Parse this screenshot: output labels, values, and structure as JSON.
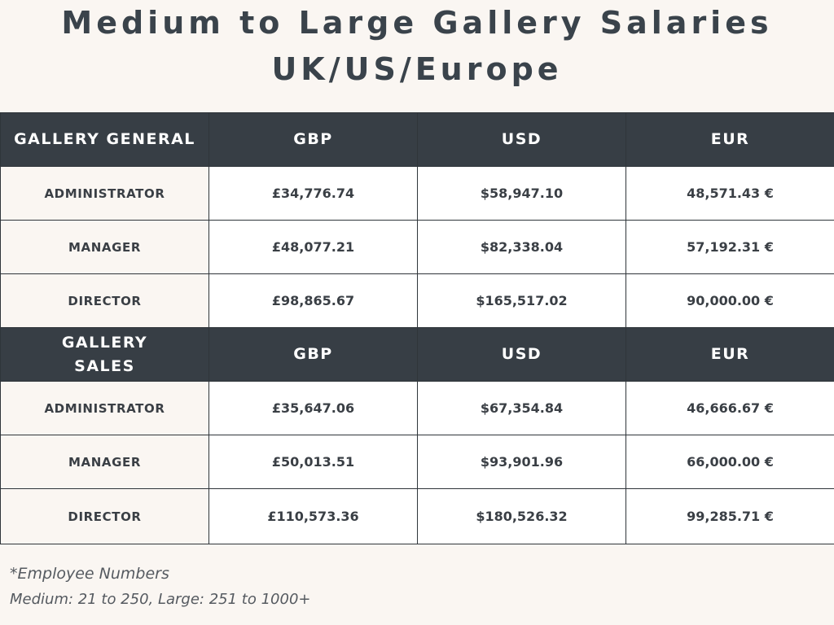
{
  "title": {
    "line1": "Medium to Large Gallery Salaries",
    "line2": "UK/US/Europe"
  },
  "chart_data": {
    "type": "table",
    "title": "Medium to Large Gallery Salaries UK/US/Europe",
    "sections": [
      {
        "header": "GALLERY GENERAL",
        "columns": [
          "GBP",
          "USD",
          "EUR"
        ],
        "rows": [
          {
            "role": "ADMINISTRATOR",
            "values": [
              "£34,776.74",
              "$58,947.10",
              "48,571.43 €"
            ]
          },
          {
            "role": "MANAGER",
            "values": [
              "£48,077.21",
              "$82,338.04",
              "57,192.31 €"
            ]
          },
          {
            "role": "DIRECTOR",
            "values": [
              "£98,865.67",
              "$165,517.02",
              "90,000.00 €"
            ]
          }
        ]
      },
      {
        "header": "GALLERY SALES",
        "columns": [
          "GBP",
          "USD",
          "EUR"
        ],
        "rows": [
          {
            "role": "ADMINISTRATOR",
            "values": [
              "£35,647.06",
              "$67,354.84",
              "46,666.67 €"
            ]
          },
          {
            "role": "MANAGER",
            "values": [
              "£50,013.51",
              "$93,901.96",
              "66,000.00 €"
            ]
          },
          {
            "role": "DIRECTOR",
            "values": [
              "£110,573.36",
              "$180,526.32",
              "99,285.71 €"
            ]
          }
        ]
      }
    ]
  },
  "footnote": {
    "line1": "*Employee Numbers",
    "line2": "Medium: 21 to 250, Large: 251 to 1000+"
  },
  "colors": {
    "header_bg": "#373e45",
    "page_bg": "#faf6f2",
    "text": "#3a3f45"
  }
}
